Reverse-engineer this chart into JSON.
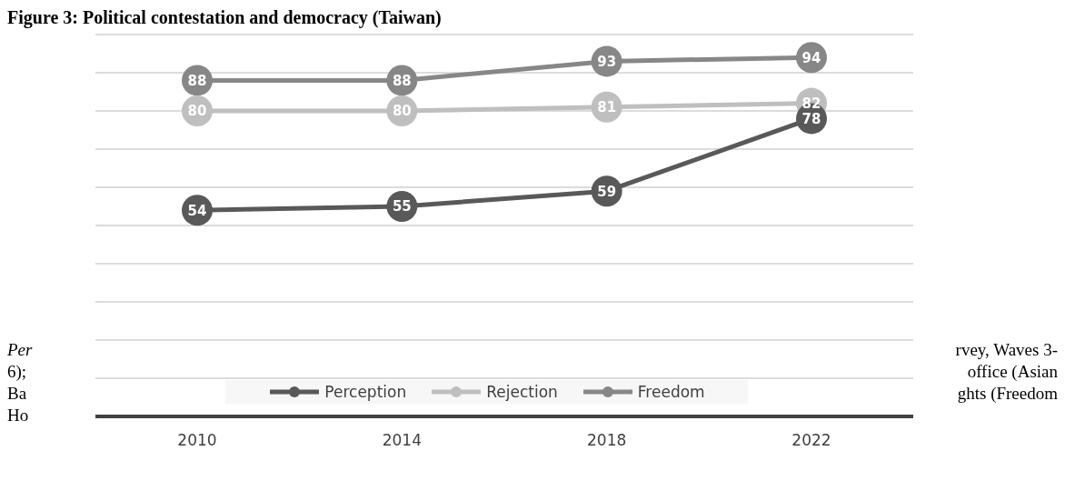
{
  "chart_data": {
    "type": "line",
    "title": "Figure 3: Political contestation and democracy (Taiwan)",
    "categories": [
      "2010",
      "2014",
      "2018",
      "2022"
    ],
    "series": [
      {
        "name": "Perception",
        "color": "#595959",
        "values": [
          54,
          55,
          59,
          78
        ]
      },
      {
        "name": "Rejection",
        "color": "#bfbfbf",
        "values": [
          80,
          80,
          81,
          82
        ]
      },
      {
        "name": "Freedom",
        "color": "#878787",
        "values": [
          88,
          88,
          93,
          94
        ]
      }
    ],
    "ylim": [
      0,
      100
    ],
    "yticks": [
      {
        "value": 0,
        "label": null
      },
      {
        "value": 10,
        "label": null
      },
      {
        "value": 20,
        "label": null
      },
      {
        "value": 30,
        "label": null
      },
      {
        "value": 40,
        "label": null
      },
      {
        "value": 50,
        "label": null
      },
      {
        "value": 60,
        "label": null
      },
      {
        "value": 70,
        "label": null
      },
      {
        "value": 80,
        "label": null
      },
      {
        "value": 90,
        "label": null
      },
      {
        "value": 100,
        "label": null
      }
    ],
    "tick_labels": "x",
    "grid": "y",
    "legend": "bottom",
    "marker": "circle",
    "line_style": "solid",
    "data_labels": true,
    "annotations": [
      "Per",
      "6);",
      "Ba",
      "Ho",
      "rvey, Waves 3-",
      "office (Asian",
      "ghts (Freedom"
    ]
  }
}
